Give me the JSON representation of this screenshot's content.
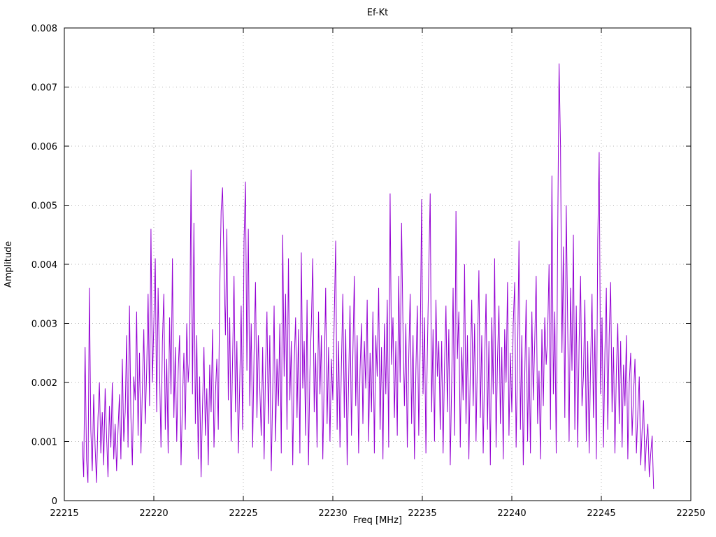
{
  "page": {
    "background": "#ffffff"
  },
  "chart_data": {
    "type": "line",
    "title": "Ef-Kt",
    "xlabel": "Freq [MHz]",
    "ylabel": "Amplitude",
    "xlim": [
      22215,
      22250
    ],
    "ylim": [
      0,
      0.008
    ],
    "x_ticks": [
      22215,
      22220,
      22225,
      22230,
      22235,
      22240,
      22245,
      22250
    ],
    "y_ticks": [
      0,
      0.001,
      0.002,
      0.003,
      0.004,
      0.005,
      0.006,
      0.007,
      0.008
    ],
    "grid": true,
    "grid_color": "#b0b0b0",
    "line_color": "#9400d3",
    "border_color": "#000000",
    "legend": "none",
    "series": [
      {
        "name": "Ef-Kt",
        "x_start": 22216.0,
        "x_step": 0.08,
        "y_unit": 0.0001,
        "y": [
          10,
          4,
          26,
          7,
          3,
          36,
          12,
          5,
          18,
          9,
          3,
          14,
          20,
          8,
          15,
          6,
          19,
          11,
          4,
          16,
          9,
          20,
          7,
          13,
          5,
          12,
          18,
          7,
          24,
          10,
          15,
          28,
          9,
          33,
          14,
          6,
          21,
          17,
          32,
          11,
          25,
          8,
          19,
          29,
          13,
          22,
          35,
          16,
          46,
          20,
          30,
          41,
          15,
          36,
          22,
          9,
          27,
          35,
          12,
          24,
          8,
          31,
          18,
          41,
          14,
          26,
          10,
          22,
          28,
          6,
          17,
          25,
          12,
          30,
          20,
          25,
          56,
          18,
          47,
          13,
          28,
          7,
          21,
          4,
          16,
          26,
          11,
          19,
          6,
          23,
          15,
          29,
          9,
          18,
          24,
          12,
          35,
          49,
          53,
          40,
          28,
          46,
          17,
          31,
          10,
          24,
          38,
          15,
          27,
          8,
          20,
          33,
          12,
          44,
          54,
          22,
          46,
          16,
          30,
          9,
          25,
          37,
          14,
          28,
          19,
          11,
          26,
          7,
          22,
          32,
          13,
          28,
          5,
          18,
          33,
          10,
          24,
          16,
          30,
          8,
          45,
          21,
          35,
          12,
          41,
          17,
          27,
          6,
          23,
          31,
          14,
          29,
          8,
          42,
          19,
          27,
          11,
          34,
          6,
          22,
          30,
          41,
          15,
          25,
          9,
          32,
          18,
          28,
          7,
          21,
          36,
          13,
          26,
          10,
          24,
          17,
          31,
          44,
          12,
          27,
          9,
          23,
          35,
          14,
          29,
          6,
          20,
          33,
          11,
          25,
          38,
          16,
          28,
          8,
          22,
          30,
          13,
          27,
          19,
          34,
          10,
          25,
          15,
          32,
          8,
          28,
          21,
          36,
          12,
          26,
          7,
          30,
          18,
          34,
          9,
          52,
          23,
          31,
          14,
          27,
          11,
          38,
          20,
          47,
          29,
          16,
          30,
          9,
          24,
          35,
          13,
          28,
          7,
          22,
          33,
          11,
          26,
          51,
          18,
          31,
          8,
          25,
          39,
          52,
          15,
          29,
          10,
          34,
          21,
          27,
          12,
          27,
          8,
          23,
          33,
          15,
          29,
          6,
          20,
          36,
          11,
          49,
          24,
          32,
          9,
          26,
          17,
          40,
          13,
          28,
          7,
          22,
          34,
          16,
          30,
          10,
          25,
          39,
          14,
          28,
          8,
          23,
          35,
          12,
          27,
          6,
          31,
          18,
          41,
          9,
          24,
          33,
          13,
          26,
          7,
          29,
          20,
          37,
          11,
          25,
          15,
          30,
          37,
          9,
          24,
          44,
          12,
          28,
          6,
          21,
          34,
          10,
          26,
          8,
          32,
          17,
          27,
          38,
          13,
          22,
          7,
          29,
          16,
          31,
          23,
          28,
          40,
          12,
          55,
          18,
          32,
          8,
          44,
          74,
          60,
          25,
          43,
          14,
          50,
          30,
          10,
          36,
          22,
          45,
          12,
          33,
          9,
          27,
          38,
          16,
          21,
          34,
          10,
          27,
          8,
          23,
          35,
          14,
          29,
          7,
          44,
          59,
          18,
          31,
          9,
          25,
          36,
          12,
          28,
          37,
          15,
          26,
          8,
          22,
          30,
          13,
          27,
          9,
          23,
          16,
          28,
          7,
          20,
          25,
          11,
          18,
          24,
          8,
          15,
          21,
          6,
          12,
          17,
          5,
          10,
          13,
          4,
          8,
          11,
          2
        ]
      }
    ]
  }
}
